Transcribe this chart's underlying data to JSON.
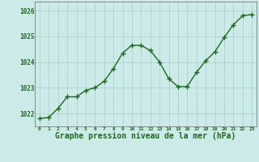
{
  "x": [
    0,
    1,
    2,
    3,
    4,
    5,
    6,
    7,
    8,
    9,
    10,
    11,
    12,
    13,
    14,
    15,
    16,
    17,
    18,
    19,
    20,
    21,
    22,
    23
  ],
  "y": [
    1021.8,
    1021.85,
    1022.2,
    1022.65,
    1022.65,
    1022.9,
    1023.0,
    1023.25,
    1023.75,
    1024.35,
    1024.65,
    1024.65,
    1024.45,
    1024.0,
    1023.35,
    1023.05,
    1023.05,
    1023.6,
    1024.05,
    1024.4,
    1024.95,
    1025.45,
    1025.8,
    1025.85
  ],
  "line_color": "#1a6b1a",
  "marker": "+",
  "marker_size": 4,
  "marker_linewidth": 1.0,
  "line_width": 1.0,
  "bg_color": "#cceae7",
  "grid_color": "#aacccc",
  "tick_color": "#1a6b1a",
  "label_color": "#1a6b1a",
  "xlabel": "Graphe pression niveau de la mer (hPa)",
  "xlabel_fontsize": 7,
  "ylim": [
    1021.5,
    1026.35
  ],
  "yticks": [
    1022,
    1023,
    1024,
    1025,
    1026
  ],
  "xtick_labels": [
    "0",
    "1",
    "2",
    "3",
    "4",
    "5",
    "6",
    "7",
    "8",
    "9",
    "10",
    "11",
    "12",
    "13",
    "14",
    "15",
    "16",
    "17",
    "18",
    "19",
    "20",
    "21",
    "22",
    "23"
  ],
  "xticks": [
    0,
    1,
    2,
    3,
    4,
    5,
    6,
    7,
    8,
    9,
    10,
    11,
    12,
    13,
    14,
    15,
    16,
    17,
    18,
    19,
    20,
    21,
    22,
    23
  ]
}
